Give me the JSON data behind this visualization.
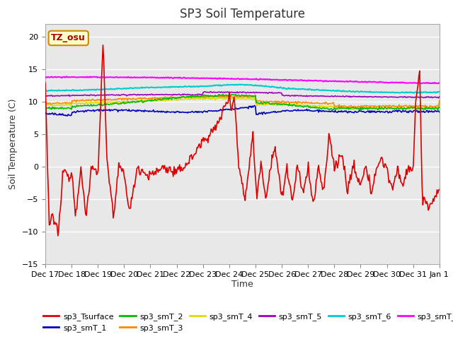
{
  "title": "SP3 Soil Temperature",
  "ylabel": "Soil Temperature (C)",
  "xlabel": "Time",
  "tz_label": "TZ_osu",
  "ylim": [
    -15,
    22
  ],
  "yticks": [
    -15,
    -10,
    -5,
    0,
    5,
    10,
    15,
    20
  ],
  "bg_color": "#ffffff",
  "plot_bg_color": "#e8e8e8",
  "series_colors": {
    "sp3_Tsurface": "#dd0000",
    "sp3_smT_1": "#0000bb",
    "sp3_smT_2": "#00bb00",
    "sp3_smT_3": "#ff8800",
    "sp3_smT_4": "#dddd00",
    "sp3_smT_5": "#9900bb",
    "sp3_smT_6": "#00cccc",
    "sp3_smT_7": "#ff00ff"
  },
  "n_points": 500,
  "x_start": 0,
  "x_end": 15,
  "xtick_positions": [
    0,
    1,
    2,
    3,
    4,
    5,
    6,
    7,
    8,
    9,
    10,
    11,
    12,
    13,
    14,
    15
  ],
  "xtick_labels": [
    "Dec 17",
    "Dec 18",
    "Dec 19",
    "Dec 20",
    "Dec 21",
    "Dec 22",
    "Dec 23",
    "Dec 24",
    "Dec 25",
    "Dec 26",
    "Dec 27",
    "Dec 28",
    "Dec 29",
    "Dec 30",
    "Dec 31",
    "Jan 1"
  ]
}
